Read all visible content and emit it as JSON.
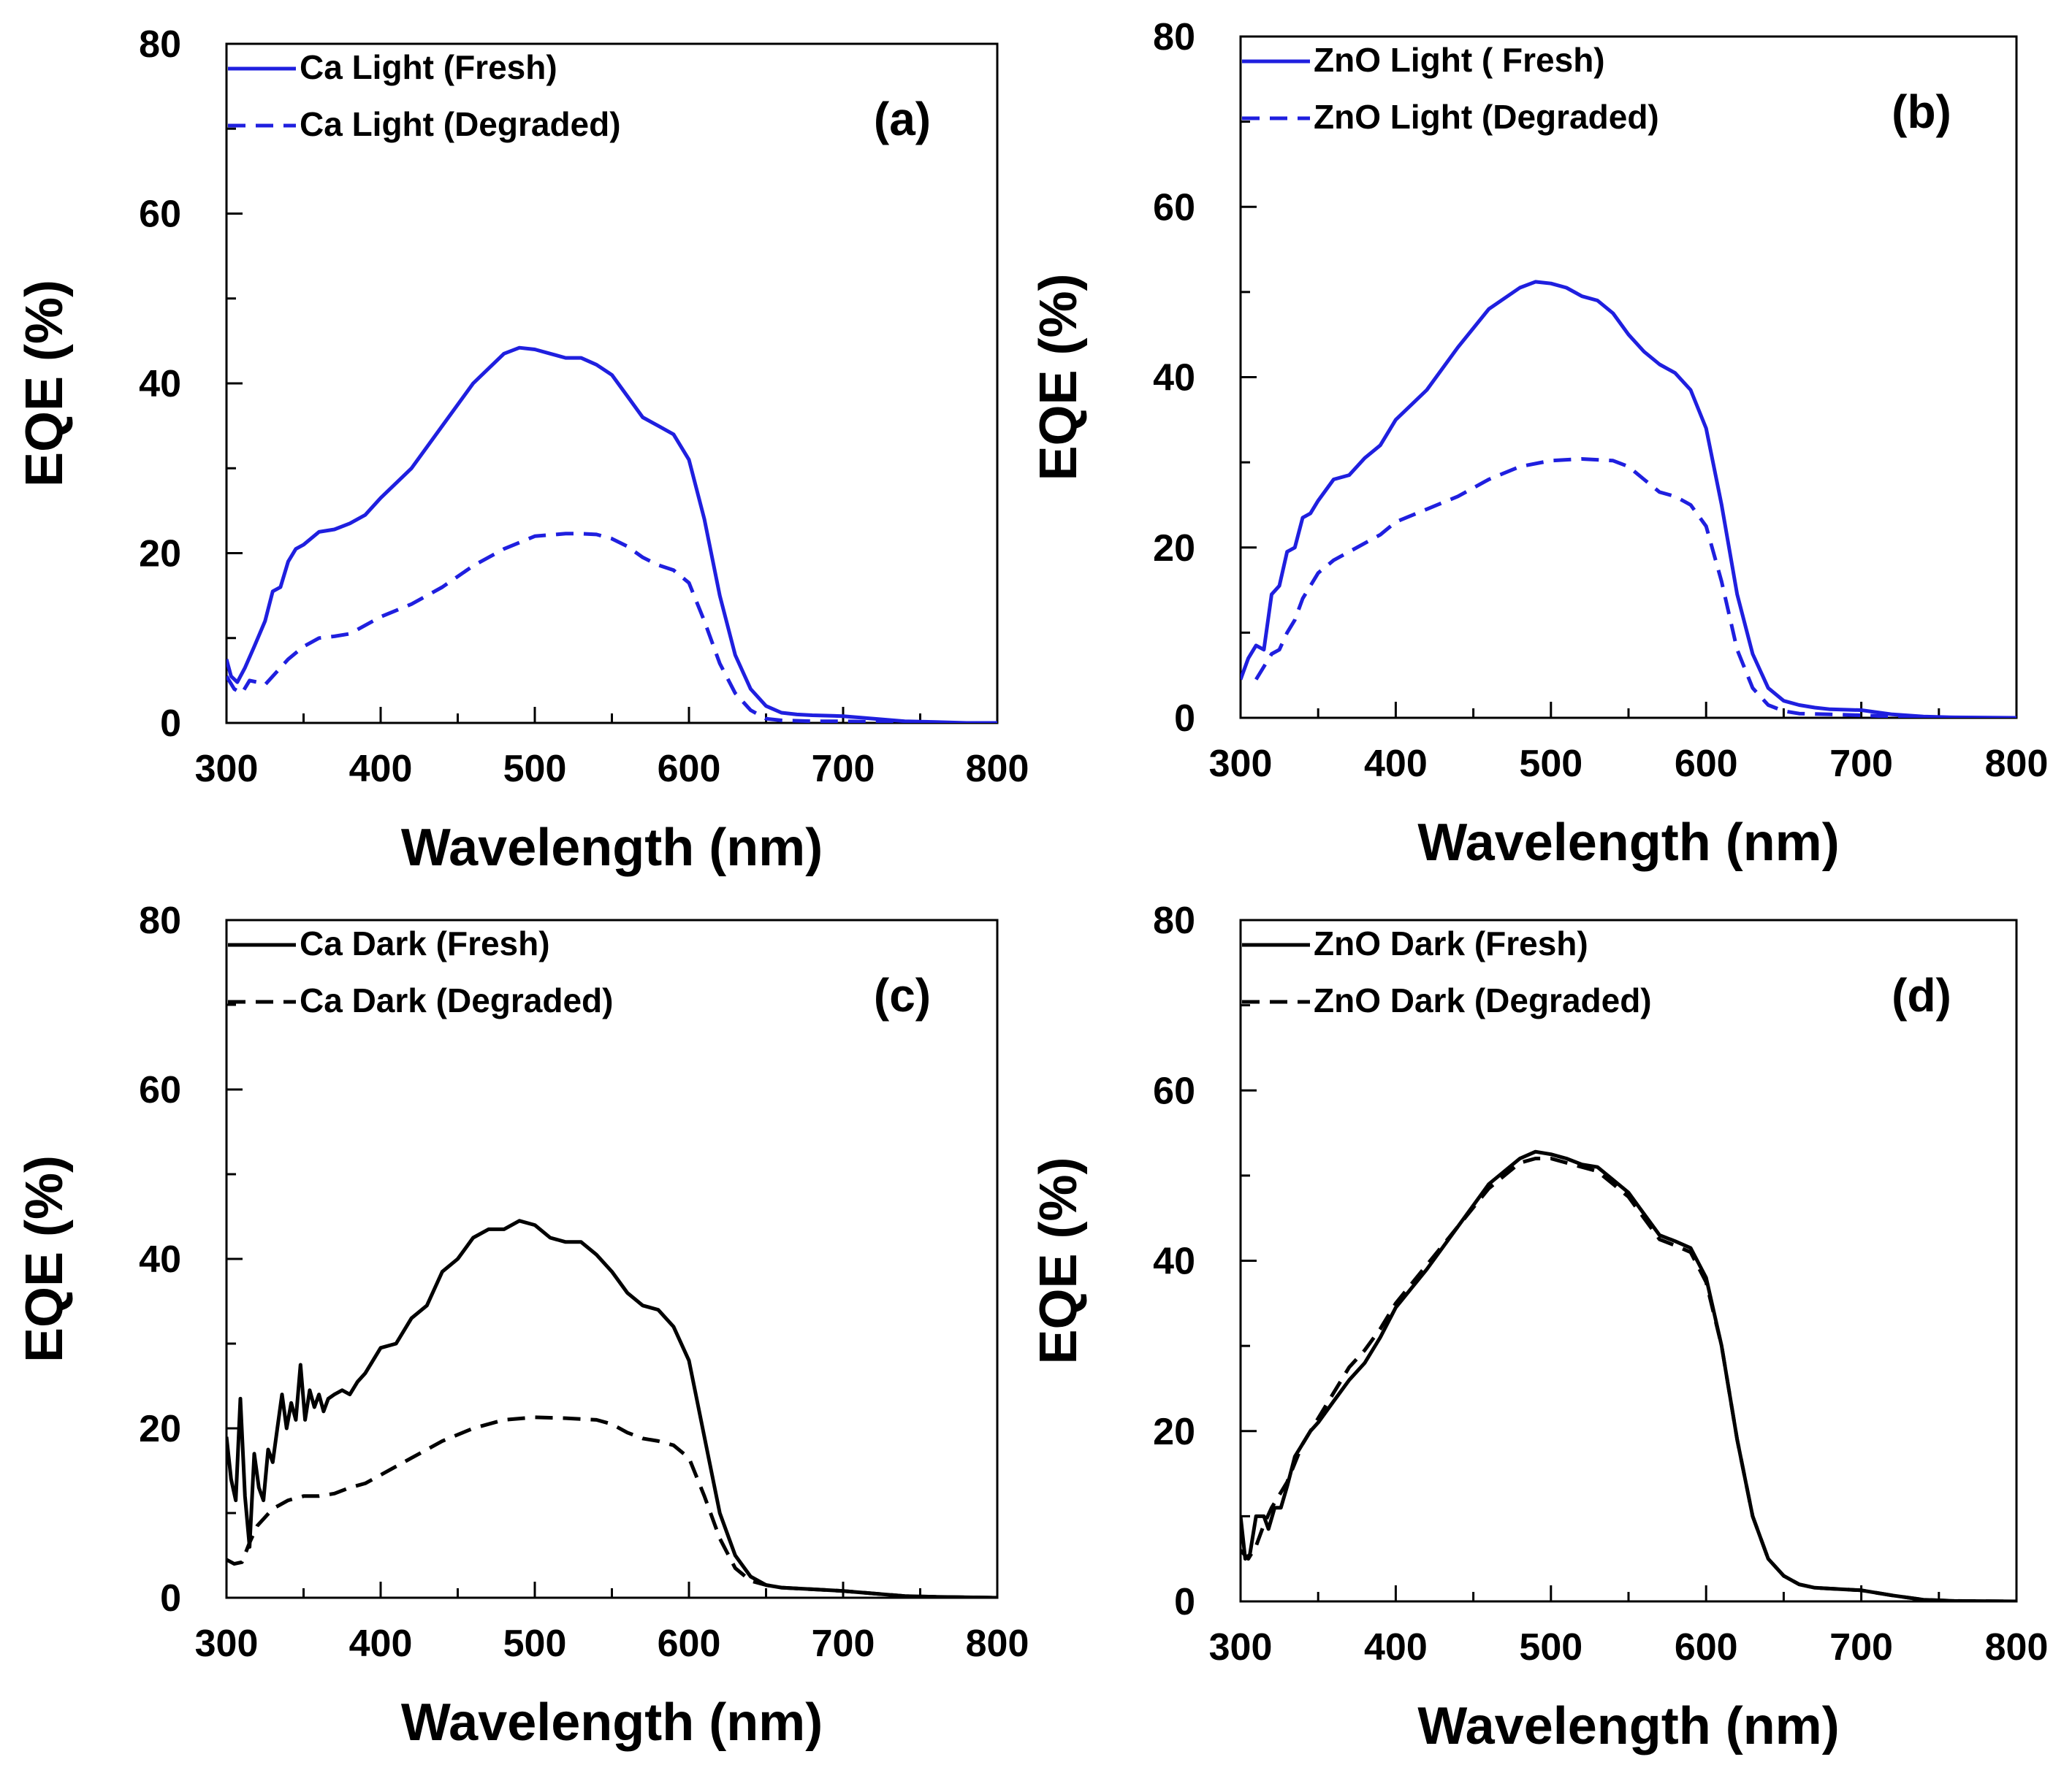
{
  "chart_data": [
    {
      "type": "line",
      "panel": "(a)",
      "xlabel": "Wavelength (nm)",
      "ylabel": "EQE (%)",
      "xlim": [
        300,
        800
      ],
      "ylim": [
        0,
        80
      ],
      "xticks": [
        300,
        400,
        500,
        600,
        700,
        800
      ],
      "yticks": [
        0,
        20,
        40,
        60,
        80
      ],
      "legend_position": "top-left",
      "series": [
        {
          "name": "Ca Light (Fresh)",
          "color": "#1f1fdf",
          "dash": "solid",
          "x": [
            300,
            303,
            307,
            312,
            318,
            325,
            330,
            335,
            340,
            345,
            350,
            360,
            370,
            380,
            390,
            400,
            420,
            440,
            460,
            480,
            490,
            500,
            510,
            520,
            530,
            540,
            550,
            560,
            570,
            580,
            590,
            600,
            610,
            620,
            630,
            640,
            650,
            660,
            670,
            680,
            700,
            720,
            740,
            760,
            780,
            800
          ],
          "y": [
            7.5,
            5.5,
            4.8,
            6.5,
            9,
            12,
            15.5,
            16,
            19,
            20.5,
            21,
            22.5,
            22.8,
            23.5,
            24.5,
            26.5,
            30,
            35,
            40,
            43.5,
            44.2,
            44,
            43.5,
            43,
            43,
            42.2,
            41,
            38.5,
            36,
            35,
            34,
            31,
            24,
            15,
            8,
            4,
            2,
            1.2,
            1,
            0.9,
            0.8,
            0.5,
            0.2,
            0.1,
            0,
            0
          ]
        },
        {
          "name": "Ca Light (Degraded)",
          "color": "#1f1fdf",
          "dash": "dashed",
          "x": [
            300,
            305,
            310,
            315,
            320,
            325,
            330,
            340,
            350,
            360,
            370,
            380,
            390,
            400,
            420,
            440,
            460,
            480,
            500,
            520,
            530,
            540,
            550,
            560,
            570,
            580,
            590,
            600,
            610,
            620,
            630,
            640,
            650,
            660,
            680,
            700,
            720,
            740,
            760,
            800
          ],
          "y": [
            5.5,
            4,
            3.5,
            5,
            4.8,
            4.5,
            5.5,
            7.5,
            9,
            10,
            10.2,
            10.5,
            11.5,
            12.5,
            14,
            16,
            18.5,
            20.5,
            22,
            22.3,
            22.3,
            22.2,
            21.7,
            20.8,
            19.5,
            18.6,
            18,
            16.5,
            12,
            7,
            3.5,
            1.5,
            0.5,
            0.3,
            0.2,
            0.2,
            0.1,
            0.05,
            0,
            0
          ]
        }
      ]
    },
    {
      "type": "line",
      "panel": "(b)",
      "xlabel": "Wavelength (nm)",
      "ylabel": "EQE (%)",
      "xlim": [
        300,
        800
      ],
      "ylim": [
        0,
        80
      ],
      "xticks": [
        300,
        400,
        500,
        600,
        700,
        800
      ],
      "yticks": [
        0,
        20,
        40,
        60,
        80
      ],
      "legend_position": "top-left",
      "series": [
        {
          "name": "ZnO Light ( Fresh)",
          "color": "#1f1fdf",
          "dash": "solid",
          "x": [
            300,
            305,
            310,
            315,
            320,
            325,
            330,
            335,
            340,
            345,
            350,
            360,
            370,
            380,
            390,
            400,
            420,
            440,
            460,
            480,
            490,
            500,
            510,
            520,
            530,
            540,
            550,
            560,
            570,
            580,
            590,
            600,
            610,
            620,
            630,
            640,
            650,
            660,
            670,
            680,
            700,
            720,
            740,
            760,
            800
          ],
          "y": [
            4.5,
            7,
            8.5,
            8,
            14.5,
            15.5,
            19.5,
            20,
            23.5,
            24,
            25.5,
            28,
            28.5,
            30.5,
            32,
            35,
            38.5,
            43.5,
            48,
            50.5,
            51.2,
            51,
            50.5,
            49.5,
            49,
            47.5,
            45,
            43,
            41.5,
            40.5,
            38.5,
            34,
            25,
            14.5,
            7.5,
            3.5,
            2,
            1.5,
            1.2,
            1,
            0.9,
            0.4,
            0.15,
            0.05,
            0
          ]
        },
        {
          "name": "ZnO Light (Degraded)",
          "color": "#1f1fdf",
          "dash": "dashed",
          "x": [
            310,
            315,
            320,
            325,
            330,
            335,
            340,
            350,
            360,
            370,
            380,
            390,
            400,
            420,
            440,
            460,
            480,
            500,
            520,
            540,
            550,
            560,
            570,
            580,
            590,
            600,
            610,
            620,
            630,
            640,
            650,
            660,
            680,
            700,
            720,
            740,
            760,
            800
          ],
          "y": [
            4.5,
            6,
            7.5,
            8,
            10,
            11.5,
            14,
            17,
            18.5,
            19.5,
            20.5,
            21.5,
            23,
            24.5,
            26,
            28,
            29.5,
            30.2,
            30.4,
            30.2,
            29.5,
            28,
            26.5,
            26,
            25,
            22.5,
            16,
            8,
            3.5,
            1.5,
            0.8,
            0.5,
            0.4,
            0.3,
            0.15,
            0.05,
            0,
            0
          ]
        }
      ]
    },
    {
      "type": "line",
      "panel": "(c)",
      "xlabel": "Wavelength (nm)",
      "ylabel": "EQE (%)",
      "xlim": [
        300,
        800
      ],
      "ylim": [
        0,
        80
      ],
      "xticks": [
        300,
        400,
        500,
        600,
        700,
        800
      ],
      "yticks": [
        0,
        20,
        40,
        60,
        80
      ],
      "legend_position": "top-left",
      "series": [
        {
          "name": "Ca Dark (Fresh)",
          "color": "#000000",
          "dash": "solid",
          "x": [
            300,
            303,
            306,
            309,
            312,
            315,
            318,
            321,
            324,
            327,
            330,
            333,
            336,
            339,
            342,
            345,
            348,
            351,
            354,
            357,
            360,
            363,
            366,
            370,
            375,
            380,
            385,
            390,
            400,
            410,
            420,
            430,
            440,
            450,
            460,
            470,
            480,
            490,
            500,
            510,
            520,
            530,
            540,
            550,
            560,
            570,
            580,
            590,
            600,
            610,
            620,
            630,
            640,
            650,
            660,
            680,
            700,
            720,
            740,
            760,
            800
          ],
          "y": [
            19,
            14,
            11.5,
            23.5,
            12,
            6,
            17,
            13,
            11.5,
            17.5,
            16,
            20,
            24,
            20,
            23,
            21,
            27.5,
            21,
            24.5,
            22.5,
            24,
            22,
            23.5,
            24,
            24.5,
            24,
            25.5,
            26.5,
            29.5,
            30,
            33,
            34.5,
            38.5,
            40,
            42.5,
            43.5,
            43.5,
            44.5,
            44,
            42.5,
            42,
            42,
            40.5,
            38.5,
            36,
            34.5,
            34,
            32,
            28,
            19,
            10,
            5,
            2.5,
            1.5,
            1.2,
            1,
            0.8,
            0.5,
            0.2,
            0.1,
            0
          ]
        },
        {
          "name": "Ca Dark (Degraded)",
          "color": "#000000",
          "dash": "dashed",
          "x": [
            300,
            305,
            310,
            315,
            320,
            330,
            340,
            350,
            360,
            370,
            380,
            390,
            400,
            420,
            440,
            460,
            480,
            500,
            520,
            540,
            550,
            560,
            570,
            580,
            590,
            600,
            610,
            620,
            630,
            640,
            650,
            660,
            680,
            700,
            720,
            740,
            760,
            800
          ],
          "y": [
            4.5,
            4,
            4.2,
            6.5,
            8.5,
            10.5,
            11.5,
            12,
            12,
            12.3,
            13,
            13.5,
            14.5,
            16.5,
            18.5,
            20,
            21,
            21.3,
            21.2,
            21,
            20.5,
            19.5,
            18.8,
            18.5,
            18,
            16.5,
            12,
            7,
            3.5,
            2,
            1.5,
            1.2,
            1,
            0.8,
            0.5,
            0.2,
            0.1,
            0
          ]
        }
      ]
    },
    {
      "type": "line",
      "panel": "(d)",
      "xlabel": "Wavelength (nm)",
      "ylabel": "EQE (%)",
      "xlim": [
        300,
        800
      ],
      "ylim": [
        0,
        80
      ],
      "xticks": [
        300,
        400,
        500,
        600,
        700,
        800
      ],
      "yticks": [
        0,
        20,
        40,
        60,
        80
      ],
      "legend_position": "top-left",
      "series": [
        {
          "name": "ZnO Dark (Fresh)",
          "color": "#000000",
          "dash": "solid",
          "x": [
            300,
            303,
            306,
            310,
            315,
            318,
            322,
            326,
            330,
            335,
            340,
            345,
            350,
            360,
            370,
            380,
            390,
            400,
            420,
            440,
            460,
            480,
            490,
            500,
            510,
            520,
            530,
            540,
            550,
            560,
            570,
            580,
            590,
            600,
            610,
            620,
            630,
            640,
            650,
            660,
            670,
            680,
            700,
            720,
            740,
            760,
            800
          ],
          "y": [
            10,
            5,
            5.5,
            10,
            10,
            8.5,
            11,
            11,
            13.5,
            17,
            18.5,
            20,
            21,
            23.5,
            26,
            28,
            31,
            34.5,
            39,
            44,
            49,
            52,
            52.8,
            52.5,
            52,
            51.3,
            51,
            49.5,
            48,
            45.5,
            43,
            42.3,
            41.5,
            38,
            30,
            19,
            10,
            5,
            3,
            2,
            1.6,
            1.5,
            1.3,
            0.7,
            0.2,
            0.05,
            0
          ]
        },
        {
          "name": "ZnO Dark (Degraded)",
          "color": "#000000",
          "dash": "dashed",
          "x": [
            300,
            305,
            310,
            315,
            320,
            330,
            340,
            350,
            360,
            370,
            380,
            390,
            400,
            420,
            440,
            460,
            480,
            490,
            500,
            510,
            520,
            530,
            540,
            550,
            560,
            570,
            580,
            590,
            600,
            610,
            620,
            630,
            640,
            650,
            660,
            670,
            680,
            700,
            720,
            740,
            760,
            800
          ],
          "y": [
            6,
            5,
            6.5,
            9,
            11,
            14,
            18.5,
            21.5,
            24.5,
            27.5,
            29.5,
            32,
            35,
            39.5,
            44,
            48.5,
            51.5,
            52,
            52,
            51.5,
            51,
            50.5,
            49,
            47.5,
            45,
            42.5,
            41.8,
            41,
            37.5,
            30,
            19,
            10,
            5,
            3,
            2,
            1.6,
            1.5,
            1.3,
            0.7,
            0.2,
            0.05,
            0
          ]
        }
      ]
    }
  ]
}
